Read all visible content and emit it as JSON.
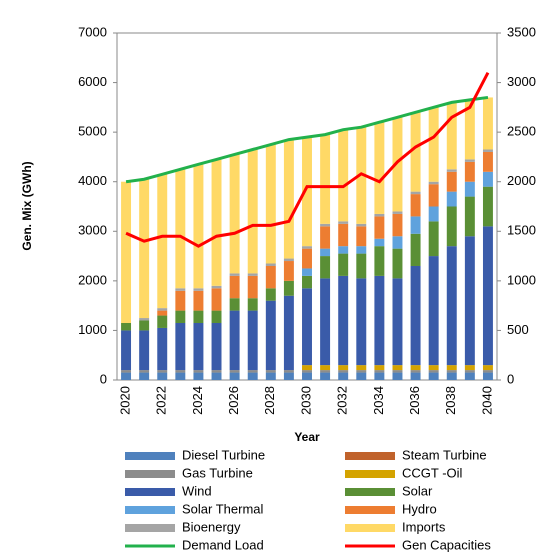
{
  "chart_data": {
    "type": "bar",
    "stacked": true,
    "xlabel": "Year",
    "ylabel": "Gen. Mix (GWh)",
    "categories": [
      "2020",
      null,
      "2022",
      null,
      "2024",
      null,
      "2026",
      null,
      "2028",
      null,
      "2030",
      null,
      "2032",
      null,
      "2034",
      null,
      "2036",
      null,
      "2038",
      null,
      "2040"
    ],
    "ylim": [
      0,
      7000
    ],
    "yticks": [
      0,
      1000,
      2000,
      3000,
      4000,
      5000,
      6000,
      7000
    ],
    "y2lim": [
      0,
      3500
    ],
    "y2ticks": [
      0,
      500,
      1000,
      1500,
      2000,
      2500,
      3000,
      3500
    ],
    "grid": false,
    "series": [
      {
        "name": "Diesel Turbine",
        "color": "#4f81bd",
        "values": [
          150,
          150,
          150,
          150,
          150,
          150,
          150,
          150,
          150,
          150,
          150,
          150,
          150,
          150,
          150,
          150,
          150,
          150,
          150,
          150,
          150
        ]
      },
      {
        "name": "Steam Turbine",
        "color": "#c0622b",
        "values": [
          0,
          0,
          0,
          0,
          0,
          0,
          0,
          0,
          0,
          0,
          0,
          0,
          0,
          0,
          0,
          0,
          0,
          0,
          0,
          0,
          0
        ]
      },
      {
        "name": "Gas Turbine",
        "color": "#8c8c8c",
        "values": [
          50,
          50,
          50,
          50,
          50,
          50,
          50,
          50,
          50,
          50,
          50,
          50,
          50,
          50,
          50,
          50,
          50,
          50,
          50,
          50,
          50
        ]
      },
      {
        "name": "CCGT -Oil",
        "color": "#d4a300",
        "values": [
          0,
          0,
          0,
          0,
          0,
          0,
          0,
          0,
          0,
          0,
          100,
          100,
          100,
          100,
          100,
          100,
          100,
          100,
          100,
          100,
          100
        ]
      },
      {
        "name": "Wind",
        "color": "#3a5ba9",
        "values": [
          800,
          800,
          850,
          950,
          950,
          950,
          1200,
          1200,
          1400,
          1500,
          1550,
          1750,
          1800,
          1750,
          1800,
          1750,
          2000,
          2200,
          2400,
          2600,
          2800
        ]
      },
      {
        "name": "Solar",
        "color": "#5a8f35",
        "values": [
          150,
          200,
          250,
          250,
          250,
          250,
          250,
          250,
          250,
          300,
          250,
          450,
          450,
          500,
          600,
          600,
          650,
          700,
          800,
          800,
          800
        ]
      },
      {
        "name": "Solar Thermal",
        "color": "#5fa2dd",
        "values": [
          0,
          0,
          0,
          0,
          0,
          0,
          0,
          0,
          0,
          0,
          150,
          150,
          150,
          150,
          150,
          250,
          350,
          300,
          300,
          300,
          300
        ]
      },
      {
        "name": "Hydro",
        "color": "#ed7d31",
        "values": [
          0,
          0,
          100,
          400,
          400,
          450,
          450,
          450,
          450,
          400,
          400,
          450,
          450,
          400,
          450,
          450,
          450,
          450,
          400,
          400,
          400
        ]
      },
      {
        "name": "Bioenergy",
        "color": "#a5a5a5",
        "values": [
          0,
          50,
          50,
          50,
          50,
          50,
          50,
          50,
          50,
          50,
          50,
          50,
          50,
          50,
          50,
          50,
          50,
          50,
          50,
          50,
          50
        ]
      },
      {
        "name": "Imports",
        "color": "#ffd966",
        "values": [
          2850,
          2800,
          2700,
          2400,
          2500,
          2550,
          2400,
          2500,
          2400,
          2400,
          2200,
          1800,
          1850,
          1950,
          1850,
          1900,
          1600,
          1500,
          1350,
          1200,
          1050
        ]
      },
      {
        "name": "Demand Load",
        "color": "#22b14c",
        "type": "line",
        "values": [
          4000,
          4050,
          4150,
          4250,
          4350,
          4450,
          4550,
          4650,
          4750,
          4850,
          4900,
          4950,
          5050,
          5100,
          5200,
          5300,
          5400,
          5500,
          5600,
          5650,
          5700
        ]
      },
      {
        "name": "Gen Capacities",
        "color": "#ff0000",
        "type": "line",
        "axis": "y2",
        "values": [
          1480,
          1400,
          1450,
          1450,
          1350,
          1450,
          1480,
          1560,
          1560,
          1600,
          1950,
          1950,
          1950,
          2080,
          2000,
          2200,
          2350,
          2450,
          2650,
          2750,
          3100
        ]
      }
    ]
  }
}
